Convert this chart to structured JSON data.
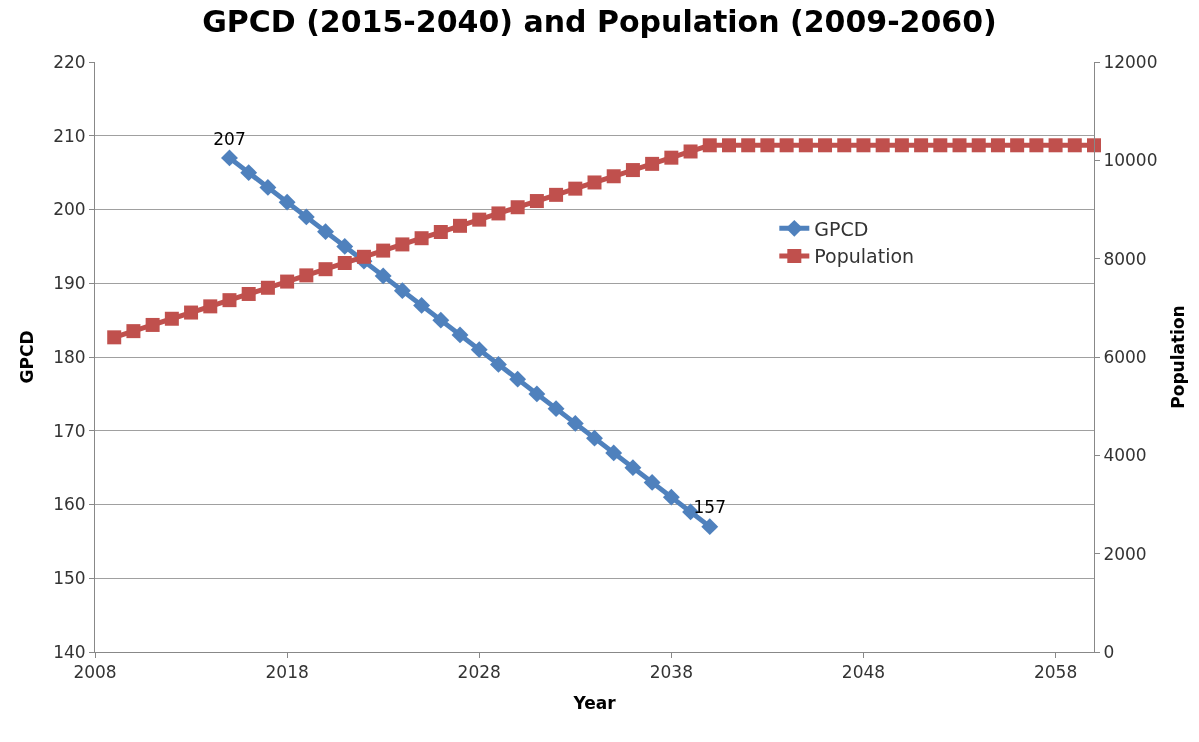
{
  "chart_data": {
    "type": "line",
    "title": "GPCD (2015-2040) and Population (2009-2060)",
    "xlabel": "Year",
    "ylabel": "GPCD",
    "y2label": "Population",
    "xlim": [
      2008,
      2060
    ],
    "xticks": [
      2008,
      2018,
      2028,
      2038,
      2048,
      2058
    ],
    "ylim": [
      140,
      220
    ],
    "yticks": [
      140,
      150,
      160,
      170,
      180,
      190,
      200,
      210,
      220
    ],
    "y2lim": [
      0,
      12000
    ],
    "y2ticks": [
      0,
      2000,
      4000,
      6000,
      8000,
      10000,
      12000
    ],
    "grid": "y",
    "legend": "right",
    "series": [
      {
        "name": "GPCD",
        "color": "#4f81bd",
        "marker": "diamond",
        "x": [
          2015,
          2016,
          2017,
          2018,
          2019,
          2020,
          2021,
          2022,
          2023,
          2024,
          2025,
          2026,
          2027,
          2028,
          2029,
          2030,
          2031,
          2032,
          2033,
          2034,
          2035,
          2036,
          2037,
          2038,
          2039,
          2040
        ],
        "values": [
          207,
          205,
          203,
          201,
          199,
          197,
          195,
          193,
          191,
          189,
          187,
          185,
          183,
          181,
          179,
          177,
          175,
          173,
          171,
          169,
          167,
          165,
          163,
          161,
          159,
          157
        ],
        "value_labels": [
          "207",
          null,
          null,
          null,
          null,
          null,
          null,
          null,
          null,
          null,
          null,
          null,
          null,
          null,
          null,
          null,
          null,
          null,
          null,
          null,
          null,
          null,
          null,
          null,
          null,
          "157"
        ]
      },
      {
        "name": "Population",
        "color": "#c0504d",
        "marker": "square",
        "axis": "y2",
        "x": [
          2009,
          2010,
          2011,
          2012,
          2013,
          2014,
          2015,
          2016,
          2017,
          2018,
          2019,
          2020,
          2021,
          2022,
          2023,
          2024,
          2025,
          2026,
          2027,
          2028,
          2029,
          2030,
          2031,
          2032,
          2033,
          2034,
          2035,
          2036,
          2037,
          2038,
          2039,
          2040,
          2041,
          2042,
          2043,
          2044,
          2045,
          2046,
          2047,
          2048,
          2049,
          2050,
          2051,
          2052,
          2053,
          2054,
          2055,
          2056,
          2057,
          2058,
          2059,
          2060
        ],
        "values": [
          6400,
          6526,
          6652,
          6778,
          6904,
          7030,
          7156,
          7282,
          7408,
          7534,
          7660,
          7786,
          7912,
          8038,
          8164,
          8290,
          8416,
          8542,
          8668,
          8794,
          8920,
          9046,
          9172,
          9298,
          9424,
          9550,
          9676,
          9802,
          9928,
          10054,
          10180,
          10306,
          10306,
          10306,
          10306,
          10306,
          10306,
          10306,
          10306,
          10306,
          10306,
          10306,
          10306,
          10306,
          10306,
          10306,
          10306,
          10306,
          10306,
          10306,
          10306,
          10306
        ]
      }
    ]
  }
}
